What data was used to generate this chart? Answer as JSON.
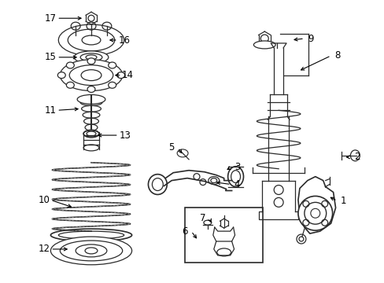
{
  "bg_color": "#ffffff",
  "line_color": "#2a2a2a",
  "fig_width": 4.89,
  "fig_height": 3.6,
  "dpi": 100,
  "label_fontsize": 8.5,
  "lw": 0.9
}
